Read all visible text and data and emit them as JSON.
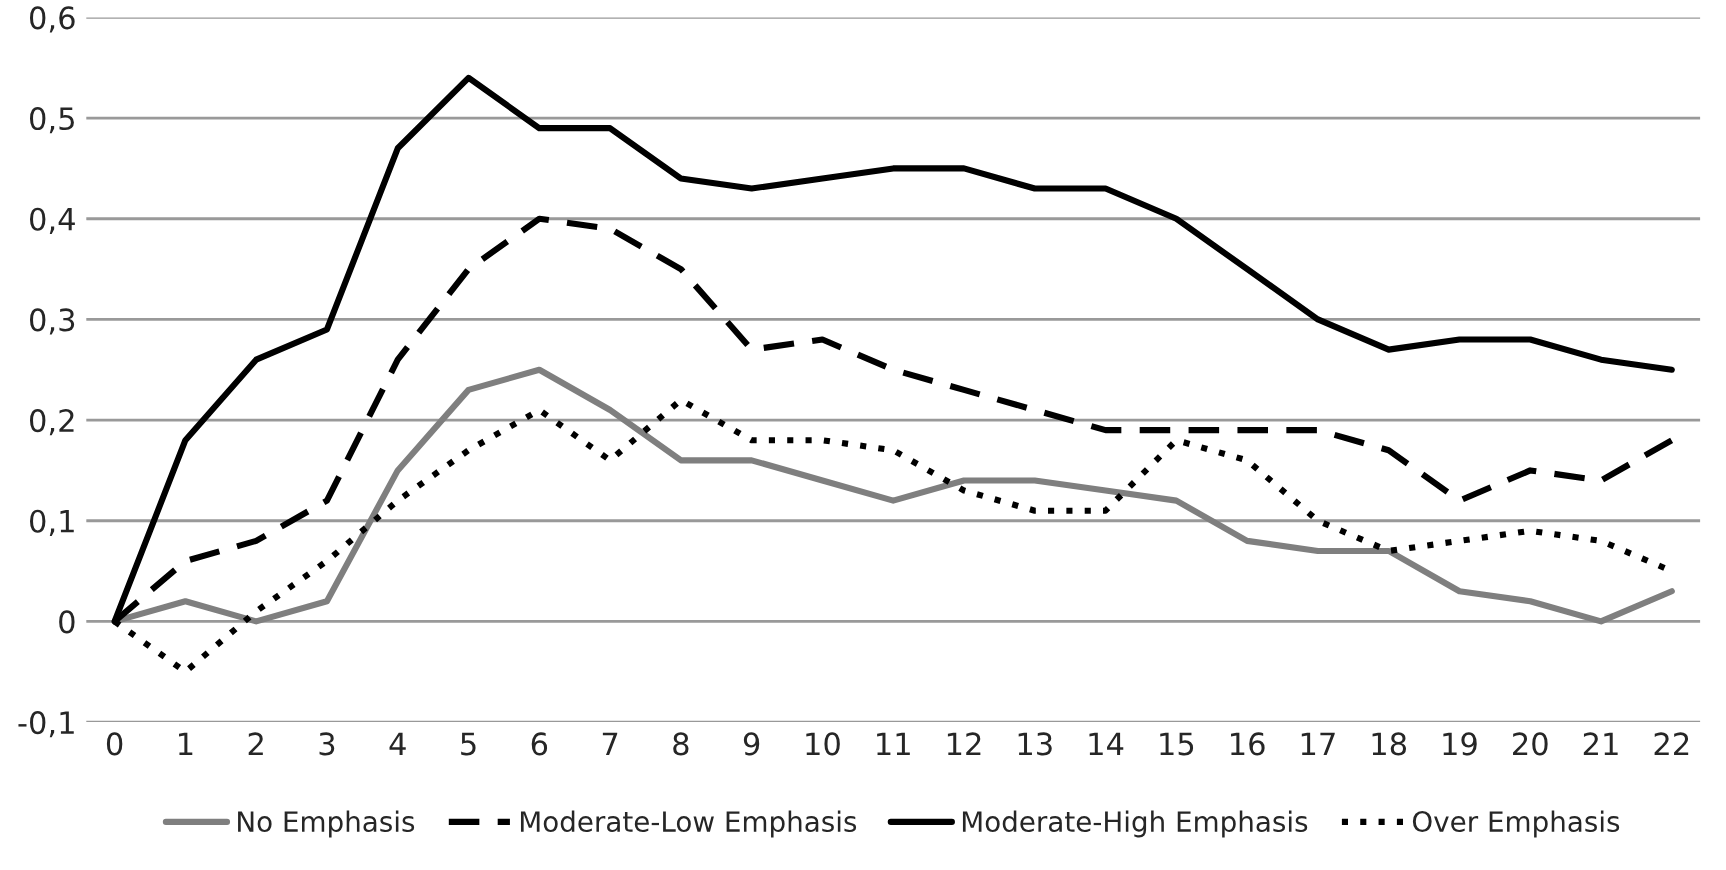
{
  "chart_data": {
    "type": "line",
    "categories": [
      "0",
      "1",
      "2",
      "3",
      "4",
      "5",
      "6",
      "7",
      "8",
      "9",
      "10",
      "11",
      "12",
      "13",
      "14",
      "15",
      "16",
      "17",
      "18",
      "19",
      "20",
      "21",
      "22"
    ],
    "series": [
      {
        "name": "No Emphasis",
        "color": "#7f7f7f",
        "line_style": "solid",
        "values": [
          0,
          0.02,
          0,
          0.02,
          0.15,
          0.23,
          0.25,
          0.21,
          0.16,
          0.16,
          0.14,
          0.12,
          0.14,
          0.14,
          0.13,
          0.12,
          0.08,
          0.07,
          0.07,
          0.03,
          0.02,
          0,
          0.03
        ]
      },
      {
        "name": "Moderate-Low Emphasis",
        "color": "#000000",
        "line_style": "dashed",
        "values": [
          0,
          0.06,
          0.08,
          0.12,
          0.26,
          0.35,
          0.4,
          0.39,
          0.35,
          0.27,
          0.28,
          0.25,
          0.23,
          0.21,
          0.19,
          0.19,
          0.19,
          0.19,
          0.17,
          0.12,
          0.15,
          0.14,
          0.18
        ]
      },
      {
        "name": "Moderate-High Emphasis",
        "color": "#000000",
        "line_style": "solid",
        "values": [
          0,
          0.18,
          0.26,
          0.29,
          0.47,
          0.54,
          0.49,
          0.49,
          0.44,
          0.43,
          0.44,
          0.45,
          0.45,
          0.43,
          0.43,
          0.4,
          0.35,
          0.3,
          0.27,
          0.28,
          0.28,
          0.26,
          0.25
        ]
      },
      {
        "name": "Over Emphasis",
        "color": "#000000",
        "line_style": "dotted",
        "values": [
          0,
          -0.05,
          0.01,
          0.06,
          0.12,
          0.17,
          0.21,
          0.16,
          0.22,
          0.18,
          0.18,
          0.17,
          0.13,
          0.11,
          0.11,
          0.18,
          0.16,
          0.1,
          0.07,
          0.08,
          0.09,
          0.08,
          0.05
        ]
      }
    ],
    "ylim": [
      -0.1,
      0.6
    ],
    "yticks": [
      {
        "value": -0.1,
        "label": "-0,1"
      },
      0,
      {
        "value": 0.1,
        "label": "0,1"
      },
      {
        "value": 0.2,
        "label": "0,2"
      },
      {
        "value": 0.3,
        "label": "0,3"
      },
      {
        "value": 0.4,
        "label": "0,4"
      },
      {
        "value": 0.5,
        "label": "0,5"
      },
      {
        "value": 0.6,
        "label": "0,6"
      }
    ],
    "grid": "y",
    "legend": "bottom"
  }
}
